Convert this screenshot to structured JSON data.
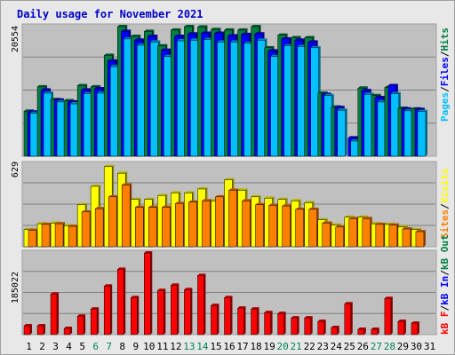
{
  "chart_data": [
    {
      "type": "bar",
      "title": "Daily usage for November 2021",
      "categories": [
        "1",
        "2",
        "3",
        "4",
        "5",
        "6",
        "7",
        "8",
        "9",
        "10",
        "11",
        "12",
        "13",
        "14",
        "15",
        "16",
        "17",
        "18",
        "19",
        "20",
        "21",
        "22",
        "23",
        "24",
        "25",
        "26",
        "27",
        "28",
        "29",
        "30",
        "31"
      ],
      "weekend_days": [
        "6",
        "7",
        "13",
        "14",
        "20",
        "21",
        "27",
        "28"
      ],
      "ymax_label": "20554",
      "ymax": 20554,
      "series": [
        {
          "name": "Hits",
          "color": "#008040",
          "values": [
            7150,
            11000,
            9000,
            8800,
            11200,
            11000,
            16000,
            20554,
            19000,
            19800,
            17500,
            20000,
            20554,
            20500,
            20100,
            20000,
            20000,
            20554,
            17200,
            19200,
            18800,
            18800,
            10000,
            7800,
            0,
            10800,
            9600,
            10900,
            7600,
            7500,
            0
          ]
        },
        {
          "name": "Files",
          "color": "#0000ff",
          "values": [
            7000,
            10500,
            8900,
            8600,
            10500,
            10700,
            15100,
            19800,
            18400,
            19000,
            16800,
            19000,
            19400,
            19500,
            19500,
            19100,
            19300,
            19400,
            16700,
            18600,
            18400,
            18100,
            9800,
            7700,
            2900,
            10400,
            9300,
            11200,
            7500,
            7400,
            0
          ]
        },
        {
          "name": "Pages",
          "color": "#00c0ff",
          "values": [
            6800,
            10000,
            8600,
            8300,
            9900,
            10000,
            14200,
            18600,
            17600,
            18100,
            15800,
            18300,
            18400,
            18500,
            18100,
            18100,
            17900,
            18400,
            15800,
            17500,
            17400,
            17200,
            9600,
            7300,
            2400,
            9800,
            8600,
            9900,
            7200,
            7100,
            0
          ]
        }
      ],
      "series_label_words": [
        "Pages",
        "Files",
        "Hits"
      ]
    },
    {
      "type": "bar",
      "ymax_label": "629",
      "ymax": 629,
      "series": [
        {
          "name": "Visits",
          "color": "#ffff00",
          "values": [
            130,
            175,
            180,
            160,
            320,
            460,
            610,
            560,
            360,
            360,
            390,
            410,
            410,
            440,
            350,
            510,
            430,
            380,
            370,
            360,
            350,
            335,
            205,
            165,
            225,
            225,
            175,
            170,
            150,
            130,
            0
          ]
        },
        {
          "name": "Sites",
          "color": "#ff8000",
          "values": [
            125,
            170,
            175,
            155,
            265,
            290,
            380,
            470,
            300,
            300,
            300,
            330,
            340,
            350,
            380,
            430,
            350,
            320,
            315,
            310,
            285,
            285,
            180,
            150,
            215,
            215,
            170,
            165,
            135,
            115,
            0
          ]
        }
      ],
      "series_label_words": [
        "Sites",
        "Visits"
      ]
    },
    {
      "type": "bar",
      "ymax_label": "185022",
      "ymax": 185022,
      "series": [
        {
          "name": "kB F",
          "color": "#ff0000",
          "values": [
            20000,
            20000,
            92000,
            14000,
            42000,
            58000,
            110000,
            148000,
            84000,
            185022,
            100000,
            112000,
            102000,
            134000,
            66000,
            84000,
            60000,
            58000,
            50000,
            48000,
            38000,
            38000,
            30000,
            16000,
            70000,
            12000,
            12000,
            82000,
            30000,
            26000,
            0
          ]
        }
      ],
      "series_label_words": [
        "kB F",
        "kB In",
        "kB Out"
      ],
      "series_label_colors": [
        "#ff0000",
        "#0000ff",
        "#008040"
      ]
    }
  ]
}
